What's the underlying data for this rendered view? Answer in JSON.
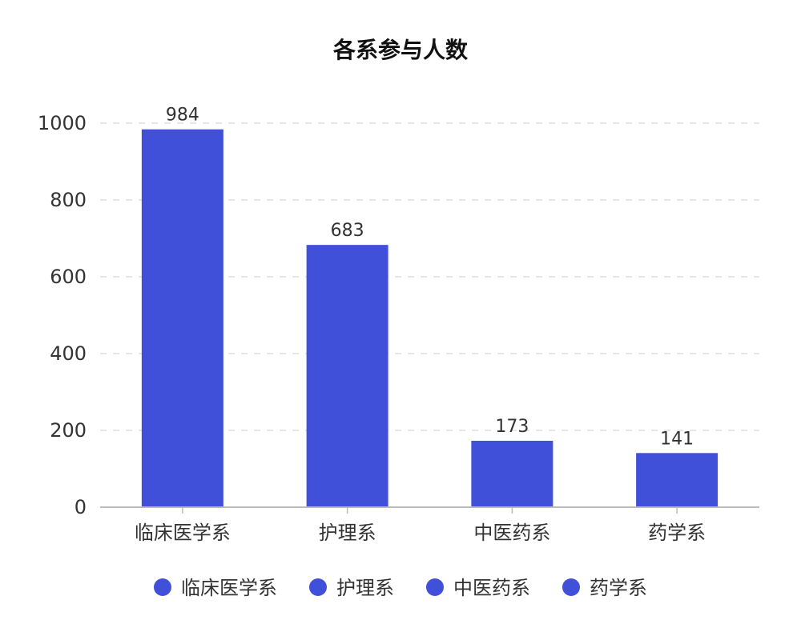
{
  "chart_data": {
    "type": "bar",
    "title": "各系参与人数",
    "categories": [
      "临床医学系",
      "护理系",
      "中医药系",
      "药学系"
    ],
    "values": [
      984,
      683,
      173,
      141
    ],
    "xlabel": "",
    "ylabel": "",
    "ylim": [
      0,
      1000
    ],
    "y_ticks": [
      0,
      200,
      400,
      600,
      800,
      1000
    ],
    "grid": true,
    "legend_position": "bottom",
    "bar_color": "#4150d8"
  }
}
